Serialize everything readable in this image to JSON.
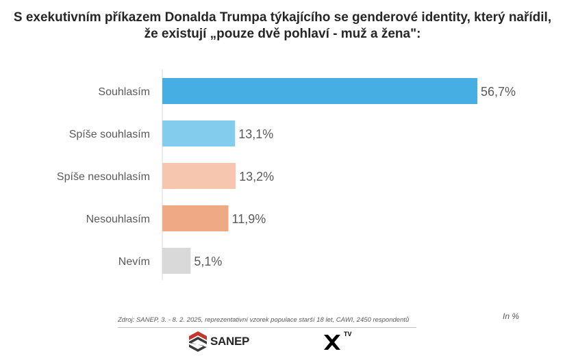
{
  "title_lines": [
    "S exekutivním příkazem Donalda Trumpa týkajícího se genderové identity, který nařídil,",
    "že existují „pouze dvě pohlaví - muž a žena\":"
  ],
  "footer": {
    "source": "Zdroj: SANEP, 3. - 8. 2. 2025, reprezentativní vzorek populace starší 18 let, CAWI, 2450 respondentů",
    "unit": "In %",
    "logo_sanep": "SANEP",
    "logo_xtv_mark": "TV"
  },
  "chart_data": {
    "type": "bar",
    "orientation": "horizontal",
    "title": "S exekutivním příkazem Donalda Trumpa týkajícího se genderové identity, který nařídil, že existují „pouze dvě pohlaví - muž a žena\":",
    "categories": [
      "Souhlasím",
      "Spíše souhlasím",
      "Spíše nesouhlasím",
      "Nesouhlasím",
      "Nevím"
    ],
    "values": [
      56.7,
      13.1,
      13.2,
      11.9,
      5.1
    ],
    "value_labels": [
      "56,7%",
      "13,1%",
      "13,2%",
      "11,9%",
      "5,1%"
    ],
    "colors": [
      "#46AEE3",
      "#84CCEE",
      "#F6C7AE",
      "#F0A985",
      "#D9D9D9"
    ],
    "unit": "In %",
    "xlim": [
      0,
      57
    ],
    "grid": false,
    "legend": "none"
  }
}
